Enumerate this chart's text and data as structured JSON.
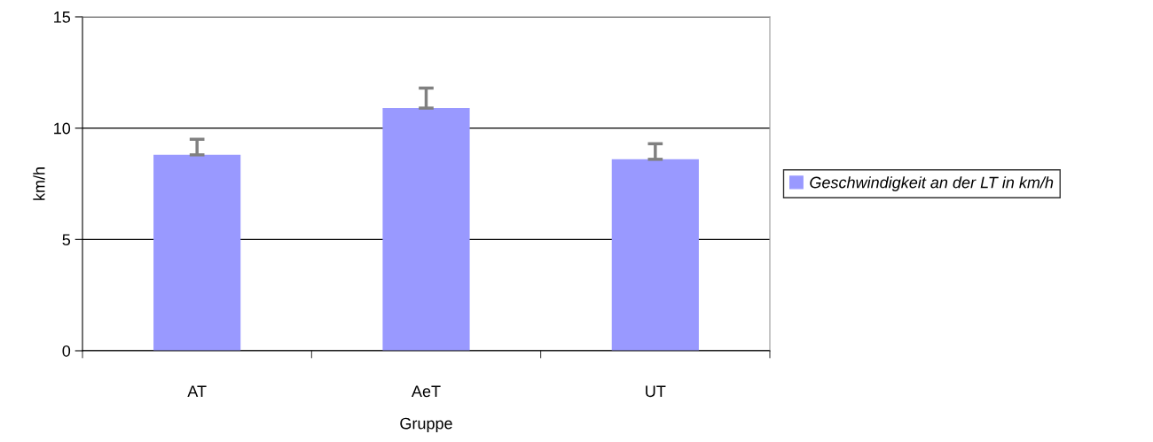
{
  "chart_data": {
    "type": "bar",
    "xlabel": "Gruppe",
    "ylabel": "km/h",
    "categories": [
      "AT",
      "AeT",
      "UT"
    ],
    "series": [
      {
        "name": "Geschwindigkeit an der LT in km/h",
        "color": "#9999ff",
        "values": [
          8.8,
          10.9,
          8.6
        ],
        "errors": [
          [
            8.8,
            9.5
          ],
          [
            10.9,
            11.8
          ],
          [
            8.6,
            9.3
          ]
        ]
      }
    ],
    "ylim": [
      0,
      15
    ],
    "yticks": [
      0,
      5,
      10,
      15
    ],
    "grid": "y",
    "legend": "right"
  }
}
